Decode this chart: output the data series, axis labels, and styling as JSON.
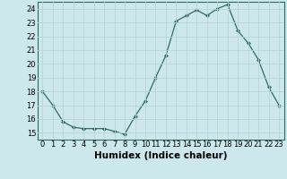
{
  "x": [
    0,
    1,
    2,
    3,
    4,
    5,
    6,
    7,
    8,
    9,
    10,
    11,
    12,
    13,
    14,
    15,
    16,
    17,
    18,
    19,
    20,
    21,
    22,
    23
  ],
  "y": [
    18,
    17,
    15.8,
    15.4,
    15.3,
    15.3,
    15.3,
    15.1,
    14.9,
    16.2,
    17.3,
    19.0,
    20.6,
    23.1,
    23.5,
    23.9,
    23.5,
    24.0,
    24.3,
    22.4,
    21.5,
    20.3,
    18.3,
    17.0
  ],
  "title": "",
  "xlabel": "Humidex (Indice chaleur)",
  "ylabel": "",
  "xlim": [
    -0.5,
    23.5
  ],
  "ylim": [
    14.5,
    24.5
  ],
  "yticks": [
    15,
    16,
    17,
    18,
    19,
    20,
    21,
    22,
    23,
    24
  ],
  "xticks": [
    0,
    1,
    2,
    3,
    4,
    5,
    6,
    7,
    8,
    9,
    10,
    11,
    12,
    13,
    14,
    15,
    16,
    17,
    18,
    19,
    20,
    21,
    22,
    23
  ],
  "line_color": "#2e6b5e",
  "marker": "D",
  "marker_size": 2.0,
  "bg_color": "#cce8ec",
  "grid_color": "#b8d4d8",
  "tick_label_fontsize": 6.0,
  "xlabel_fontsize": 7.5
}
